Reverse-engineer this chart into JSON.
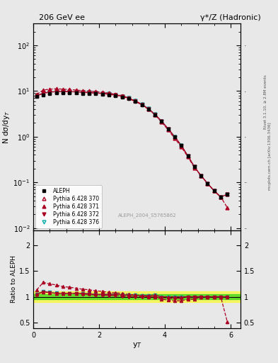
{
  "title_left": "206 GeV ee",
  "title_right": "γ*/Z (Hadronic)",
  "ylabel_main": "N dσ/dy$_T$",
  "ylabel_ratio": "Ratio to ALEPH",
  "xlabel": "y$_T$",
  "right_label_top": "Rivet 3.1.10, ≥ 2.8M events",
  "right_label_bot": "mcplots.cern.ch [arXiv:1306.3436]",
  "watermark": "ALEPH_2004_S5765862",
  "xlim": [
    0,
    6.3
  ],
  "ylim_main": [
    0.009,
    300
  ],
  "ylim_ratio": [
    0.38,
    2.3
  ],
  "ratio_yticks": [
    0.5,
    1.0,
    1.5,
    2.0
  ],
  "bg_color": "#e8e8e8",
  "aleph_x": [
    0.1,
    0.3,
    0.5,
    0.7,
    0.9,
    1.1,
    1.3,
    1.5,
    1.7,
    1.9,
    2.1,
    2.3,
    2.5,
    2.7,
    2.9,
    3.1,
    3.3,
    3.5,
    3.7,
    3.9,
    4.1,
    4.3,
    4.5,
    4.7,
    4.9,
    5.1,
    5.3,
    5.5,
    5.7,
    5.9
  ],
  "aleph_y": [
    7.5,
    8.2,
    8.8,
    9.1,
    9.2,
    9.1,
    9.0,
    8.9,
    8.8,
    8.7,
    8.5,
    8.3,
    7.9,
    7.4,
    6.8,
    5.9,
    5.0,
    4.0,
    3.0,
    2.2,
    1.5,
    1.0,
    0.65,
    0.38,
    0.22,
    0.14,
    0.095,
    0.065,
    0.048,
    0.055
  ],
  "py370_x": [
    0.1,
    0.3,
    0.5,
    0.7,
    0.9,
    1.1,
    1.3,
    1.5,
    1.7,
    1.9,
    2.1,
    2.3,
    2.5,
    2.7,
    2.9,
    3.1,
    3.3,
    3.5,
    3.7,
    3.9,
    4.1,
    4.3,
    4.5,
    4.7,
    4.9,
    5.1,
    5.3,
    5.5,
    5.7,
    5.9
  ],
  "py370_y": [
    7.9,
    9.0,
    9.5,
    9.7,
    9.8,
    9.7,
    9.6,
    9.5,
    9.3,
    9.1,
    8.9,
    8.7,
    8.3,
    7.7,
    7.0,
    6.1,
    5.1,
    4.1,
    3.1,
    2.2,
    1.5,
    1.0,
    0.65,
    0.38,
    0.22,
    0.14,
    0.095,
    0.065,
    0.048,
    0.055
  ],
  "py371_x": [
    0.1,
    0.3,
    0.5,
    0.7,
    0.9,
    1.1,
    1.3,
    1.5,
    1.7,
    1.9,
    2.1,
    2.3,
    2.5,
    2.7,
    2.9,
    3.1,
    3.3,
    3.5,
    3.7,
    3.9,
    4.1,
    4.3,
    4.5,
    4.7,
    4.9,
    5.1,
    5.3,
    5.5,
    5.7,
    5.9
  ],
  "py371_y": [
    8.5,
    10.5,
    11.0,
    11.2,
    11.0,
    10.8,
    10.5,
    10.2,
    10.0,
    9.7,
    9.4,
    9.0,
    8.5,
    7.9,
    7.1,
    6.1,
    5.1,
    4.0,
    3.0,
    2.1,
    1.4,
    0.92,
    0.6,
    0.36,
    0.21,
    0.14,
    0.095,
    0.065,
    0.048,
    0.028
  ],
  "py372_x": [
    0.1,
    0.3,
    0.5,
    0.7,
    0.9,
    1.1,
    1.3,
    1.5,
    1.7,
    1.9,
    2.1,
    2.3,
    2.5,
    2.7,
    2.9,
    3.1,
    3.3,
    3.5,
    3.7,
    3.9,
    4.1,
    4.3,
    4.5,
    4.7,
    4.9,
    5.1,
    5.3,
    5.5,
    5.7,
    5.9
  ],
  "py372_y": [
    7.8,
    9.0,
    9.5,
    9.7,
    9.8,
    9.7,
    9.6,
    9.4,
    9.2,
    9.0,
    8.8,
    8.5,
    8.1,
    7.5,
    6.8,
    5.9,
    5.0,
    4.0,
    3.0,
    2.15,
    1.45,
    0.97,
    0.63,
    0.38,
    0.22,
    0.14,
    0.095,
    0.065,
    0.048,
    0.055
  ],
  "py376_x": [
    0.1,
    0.3,
    0.5,
    0.7,
    0.9,
    1.1,
    1.3,
    1.5,
    1.7,
    1.9,
    2.1,
    2.3,
    2.5,
    2.7,
    2.9,
    3.1,
    3.3,
    3.5,
    3.7,
    3.9,
    4.1,
    4.3,
    4.5,
    4.7,
    4.9,
    5.1,
    5.3,
    5.5,
    5.7,
    5.9
  ],
  "py376_y": [
    7.9,
    9.1,
    9.6,
    9.8,
    9.8,
    9.7,
    9.6,
    9.5,
    9.3,
    9.1,
    8.9,
    8.7,
    8.3,
    7.7,
    7.0,
    6.1,
    5.1,
    4.1,
    3.1,
    2.2,
    1.5,
    1.0,
    0.65,
    0.38,
    0.22,
    0.14,
    0.095,
    0.065,
    0.048,
    0.055
  ],
  "color_aleph": "#000000",
  "color_370": "#aa0022",
  "color_371": "#aa0022",
  "color_372": "#aa0022",
  "color_376": "#00aaaa",
  "legend_entries": [
    "ALEPH",
    "Pythia 6.428 370",
    "Pythia 6.428 371",
    "Pythia 6.428 372",
    "Pythia 6.428 376"
  ]
}
